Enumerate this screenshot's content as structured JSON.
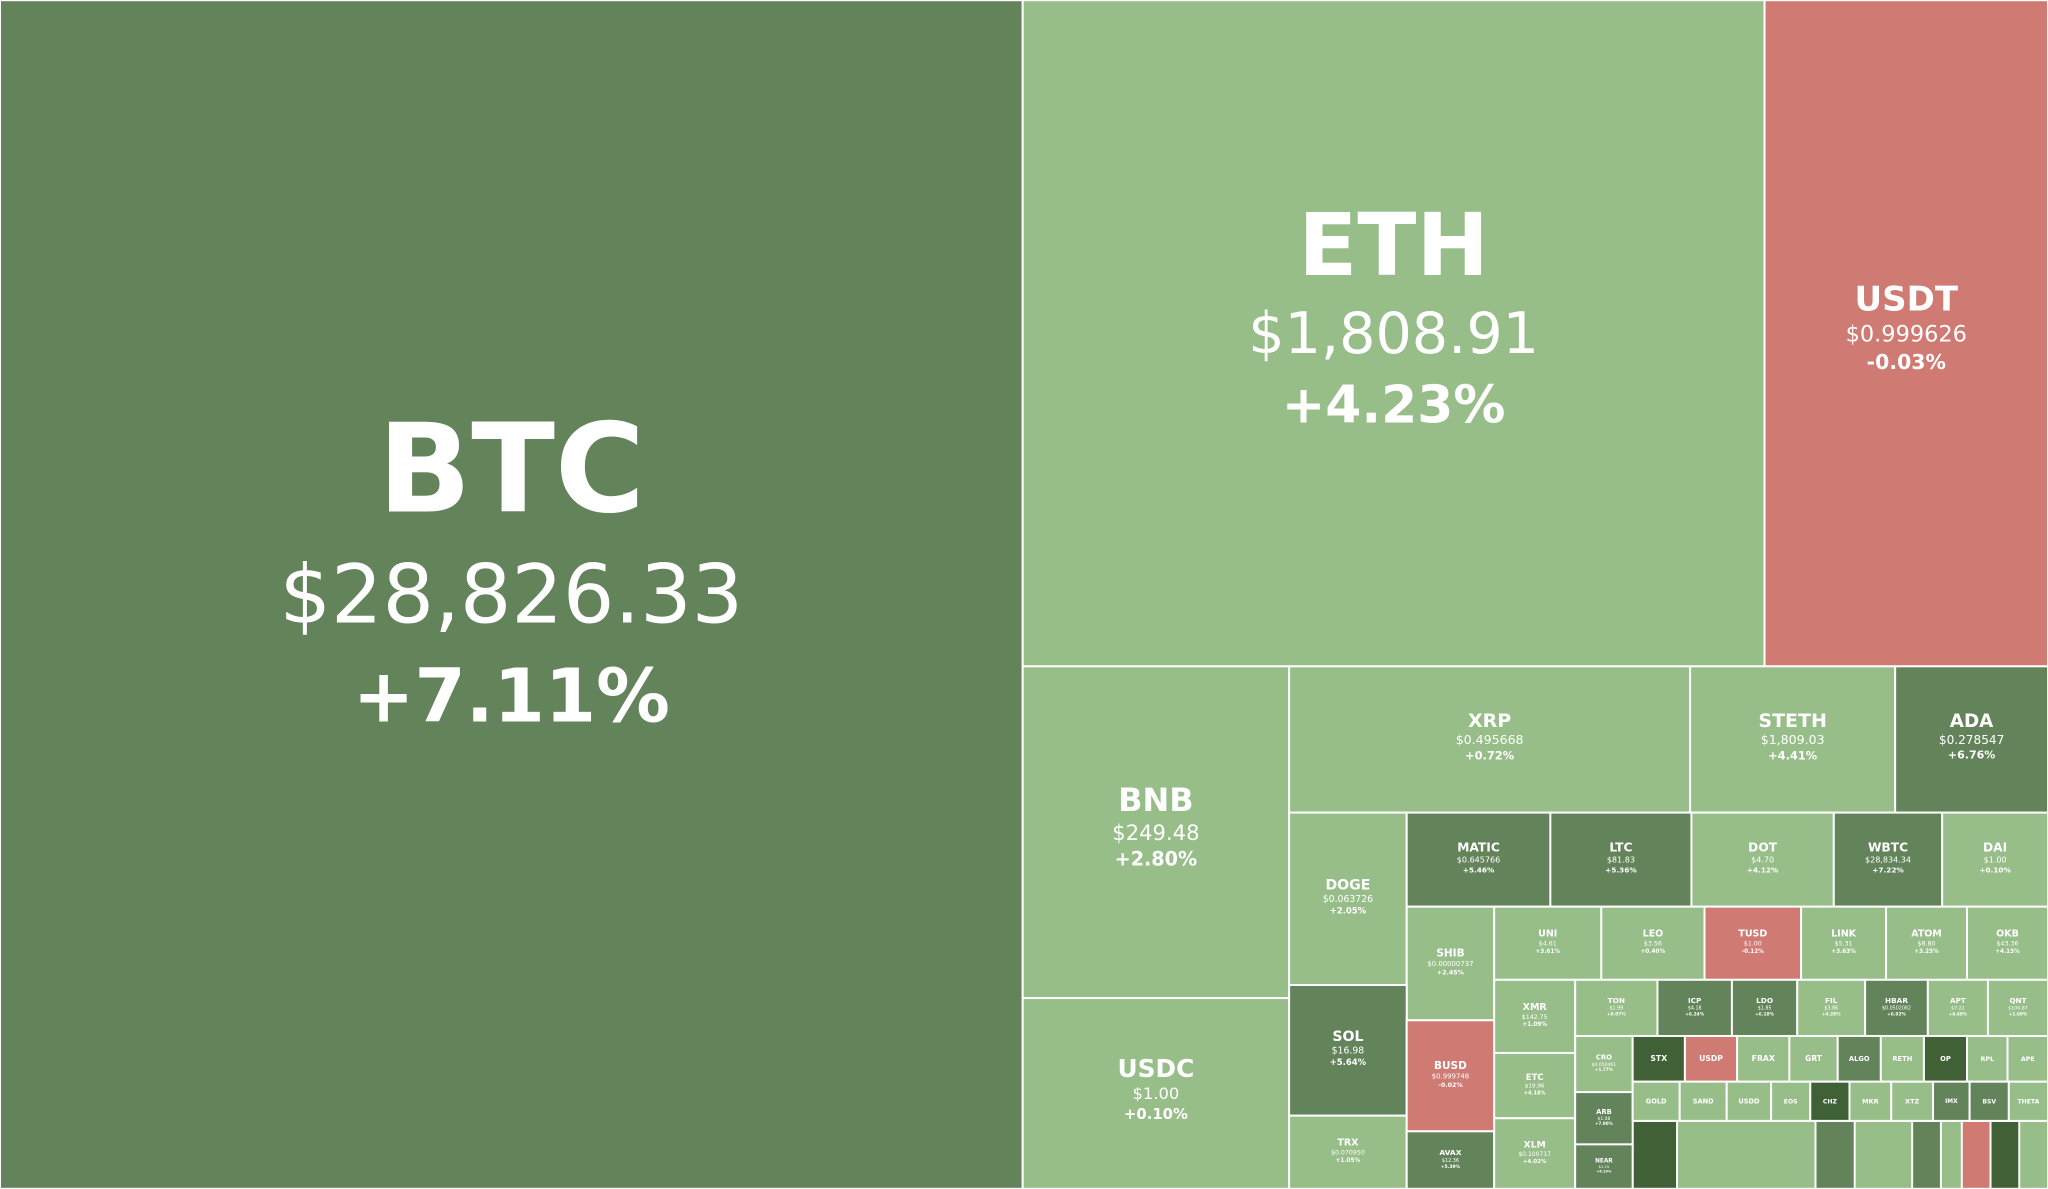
{
  "tiles": [
    {
      "symbol": "BTC",
      "price": "$28,826.33",
      "change": "+7.11%",
      "color": "#63835a"
    },
    {
      "symbol": "ETH",
      "price": "$1,808.91",
      "change": "+4.23%",
      "color": "#97be89"
    },
    {
      "symbol": "USDT",
      "price": "$0.999626",
      "change": "-0.03%",
      "color": "#cf7a72"
    },
    {
      "symbol": "BNB",
      "price": "$249.48",
      "change": "+2.80%",
      "color": "#97be89"
    },
    {
      "symbol": "USDC",
      "price": "$1.00",
      "change": "+0.10%",
      "color": "#97be89"
    },
    {
      "symbol": "XRP",
      "price": "$0.495668",
      "change": "+0.72%",
      "color": "#97be89"
    },
    {
      "symbol": "STETH",
      "price": "$1,809.03",
      "change": "+4.41%",
      "color": "#97be89"
    },
    {
      "symbol": "ADA",
      "price": "$0.278547",
      "change": "+6.76%",
      "color": "#63835a"
    },
    {
      "symbol": "DOGE",
      "price": "$0.063726",
      "change": "+2.05%",
      "color": "#97be89"
    },
    {
      "symbol": "MATIC",
      "price": "$0.645766",
      "change": "+5.46%",
      "color": "#63835a"
    },
    {
      "symbol": "LTC",
      "price": "$81.83",
      "change": "+5.36%",
      "color": "#63835a"
    },
    {
      "symbol": "DOT",
      "price": "$4.70",
      "change": "+4.12%",
      "color": "#97be89"
    },
    {
      "symbol": "WBTC",
      "price": "$28,834.34",
      "change": "+7.22%",
      "color": "#63835a"
    },
    {
      "symbol": "DAI",
      "price": "$1.00",
      "change": "+0.10%",
      "color": "#97be89"
    },
    {
      "symbol": "SHIB",
      "price": "$0.00000737",
      "change": "+2.45%",
      "color": "#97be89"
    },
    {
      "symbol": "UNI",
      "price": "$4.61",
      "change": "+3.61%",
      "color": "#97be89"
    },
    {
      "symbol": "LEO",
      "price": "$3.56",
      "change": "+0.40%",
      "color": "#97be89"
    },
    {
      "symbol": "TUSD",
      "price": "$1.00",
      "change": "-0.12%",
      "color": "#cf7a72"
    },
    {
      "symbol": "LINK",
      "price": "$5.31",
      "change": "+3.63%",
      "color": "#97be89"
    },
    {
      "symbol": "ATOM",
      "price": "$8.80",
      "change": "+3.25%",
      "color": "#97be89"
    },
    {
      "symbol": "OKB",
      "price": "$43.36",
      "change": "+4.15%",
      "color": "#97be89"
    },
    {
      "symbol": "SOL",
      "price": "$16.98",
      "change": "+5.64%",
      "color": "#63835a"
    },
    {
      "symbol": "TRX",
      "price": "$0.070950",
      "change": "+1.05%",
      "color": "#97be89"
    },
    {
      "symbol": "BUSD",
      "price": "$0.999748",
      "change": "-0.02%",
      "color": "#cf7a72"
    },
    {
      "symbol": "AVAX",
      "price": "$12.36",
      "change": "+5.39%",
      "color": "#63835a"
    },
    {
      "symbol": "XMR",
      "price": "$142.75",
      "change": "+1.09%",
      "color": "#97be89"
    },
    {
      "symbol": "ETC",
      "price": "$19.96",
      "change": "+4.18%",
      "color": "#97be89"
    },
    {
      "symbol": "XLM",
      "price": "$0.100717",
      "change": "+4.02%",
      "color": "#97be89"
    },
    {
      "symbol": "TON",
      "price": "$1.99",
      "change": "+0.07%",
      "color": "#97be89"
    },
    {
      "symbol": "ICP",
      "price": "$4.18",
      "change": "+6.24%",
      "color": "#63835a"
    },
    {
      "symbol": "LDO",
      "price": "$1.85",
      "change": "+6.18%",
      "color": "#63835a"
    },
    {
      "symbol": "FIL",
      "price": "$3.86",
      "change": "+4.28%",
      "color": "#97be89"
    },
    {
      "symbol": "HBAR",
      "price": "$0.0502082",
      "change": "+6.92%",
      "color": "#63835a"
    },
    {
      "symbol": "APT",
      "price": "$7.22",
      "change": "+4.68%",
      "color": "#97be89"
    },
    {
      "symbol": "QNT",
      "price": "$100.87",
      "change": "+1.60%",
      "color": "#97be89"
    },
    {
      "symbol": "CRO",
      "price": "$0.050461",
      "change": "+1.77%",
      "color": "#97be89"
    },
    {
      "symbol": "ARB",
      "price": "$1.08",
      "change": "+7.90%",
      "color": "#63835a"
    },
    {
      "symbol": "NEAR",
      "price": "$1.25",
      "change": "+6.10%",
      "color": "#63835a"
    },
    {
      "symbol": "STX",
      "color": "#3f6135"
    },
    {
      "symbol": "USDP",
      "color": "#cf7a72"
    },
    {
      "symbol": "FRAX",
      "color": "#97be89"
    },
    {
      "symbol": "GRT",
      "color": "#97be89"
    },
    {
      "symbol": "ALGO",
      "color": "#63835a"
    },
    {
      "symbol": "RETH",
      "color": "#97be89"
    },
    {
      "symbol": "OP",
      "color": "#3f6135"
    },
    {
      "symbol": "RPL",
      "color": "#97be89"
    },
    {
      "symbol": "APE",
      "color": "#97be89"
    },
    {
      "symbol": "GOLD",
      "color": "#97be89"
    },
    {
      "symbol": "SAND",
      "color": "#97be89"
    },
    {
      "symbol": "USDD",
      "color": "#97be89"
    },
    {
      "symbol": "EOS",
      "color": "#97be89"
    },
    {
      "symbol": "CHZ",
      "color": "#3f6135"
    },
    {
      "symbol": "MKR",
      "color": "#97be89"
    },
    {
      "symbol": "XTZ",
      "color": "#97be89"
    },
    {
      "symbol": "IMX",
      "color": "#63835a"
    },
    {
      "symbol": "BSV",
      "color": "#63835a"
    },
    {
      "symbol": "THETA",
      "color": "#97be89"
    }
  ]
}
